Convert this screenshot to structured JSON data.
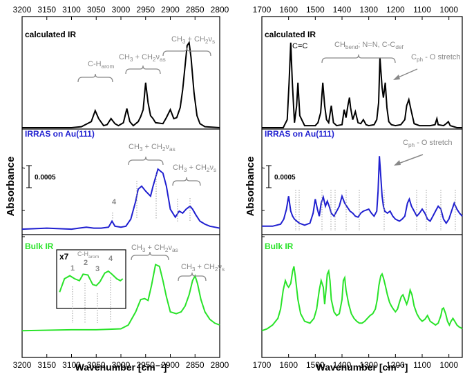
{
  "chart_data": [
    {
      "type": "line",
      "panel": "left",
      "xlabel": "Wavenumber [cm⁻¹]",
      "ylabel": "Absorbance",
      "xlim": [
        3200,
        2800
      ],
      "xticks": [
        "3200",
        "3150",
        "3100",
        "3050",
        "3000",
        "2950",
        "2900",
        "2850",
        "2800"
      ],
      "xtick_values": [
        3200,
        3150,
        3100,
        3050,
        3000,
        2950,
        2900,
        2850,
        2800
      ],
      "ylim": [
        0,
        1
      ],
      "grid": false,
      "series": [
        {
          "name": "calculated IR",
          "color": "#000000",
          "band": [
            0.0,
            0.333
          ],
          "x": [
            3200,
            3100,
            3080,
            3060,
            3052,
            3045,
            3035,
            3028,
            3020,
            3012,
            3005,
            2995,
            2988,
            2982,
            2975,
            2965,
            2960,
            2955,
            2950,
            2945,
            2940,
            2935,
            2930,
            2915,
            2908,
            2900,
            2893,
            2887,
            2880,
            2875,
            2870,
            2866,
            2862,
            2858,
            2852,
            2846,
            2840,
            2830,
            2800
          ],
          "y": [
            0.0,
            0.0,
            0.01,
            0.06,
            0.17,
            0.09,
            0.02,
            0.03,
            0.09,
            0.04,
            0.02,
            0.05,
            0.19,
            0.06,
            0.02,
            0.06,
            0.11,
            0.18,
            0.45,
            0.25,
            0.12,
            0.09,
            0.05,
            0.04,
            0.1,
            0.18,
            0.09,
            0.1,
            0.2,
            0.38,
            0.62,
            0.82,
            0.85,
            0.7,
            0.35,
            0.12,
            0.04,
            0.01,
            0.0
          ]
        },
        {
          "name": "IRRAS on Au(111)",
          "color": "#1f1fd0",
          "band": [
            0.333,
            0.667
          ],
          "x": [
            3200,
            3150,
            3100,
            3085,
            3070,
            3055,
            3040,
            3025,
            3018,
            3012,
            3000,
            2990,
            2980,
            2970,
            2965,
            2958,
            2950,
            2940,
            2935,
            2925,
            2915,
            2908,
            2900,
            2890,
            2882,
            2875,
            2868,
            2860,
            2855,
            2848,
            2840,
            2830,
            2820,
            2810,
            2800
          ],
          "y": [
            0.02,
            0.03,
            0.02,
            0.03,
            0.04,
            0.03,
            0.03,
            0.04,
            0.1,
            0.05,
            0.04,
            0.05,
            0.12,
            0.3,
            0.42,
            0.45,
            0.4,
            0.35,
            0.45,
            0.62,
            0.58,
            0.45,
            0.22,
            0.14,
            0.2,
            0.18,
            0.22,
            0.25,
            0.22,
            0.16,
            0.1,
            0.07,
            0.05,
            0.04,
            0.03
          ]
        },
        {
          "name": "Bulk IR",
          "color": "#29e329",
          "band": [
            0.667,
            1.0
          ],
          "x": [
            3200,
            3100,
            3050,
            3000,
            2985,
            2970,
            2960,
            2952,
            2945,
            2938,
            2930,
            2922,
            2915,
            2908,
            2900,
            2888,
            2878,
            2870,
            2862,
            2855,
            2850,
            2845,
            2838,
            2830,
            2820,
            2810,
            2800
          ],
          "y": [
            0.02,
            0.03,
            0.03,
            0.04,
            0.08,
            0.22,
            0.35,
            0.36,
            0.34,
            0.5,
            0.72,
            0.7,
            0.55,
            0.38,
            0.22,
            0.2,
            0.22,
            0.28,
            0.4,
            0.55,
            0.6,
            0.52,
            0.35,
            0.22,
            0.14,
            0.1,
            0.08
          ]
        },
        {
          "name": "Bulk IR inset x7",
          "color": "#29e329",
          "inset": true,
          "x": [
            3105,
            3097,
            3088,
            3080,
            3072,
            3066,
            3058,
            3050,
            3044,
            3038,
            3030,
            3024,
            3018,
            3010,
            3004,
            3000
          ],
          "y": [
            0.25,
            0.6,
            0.68,
            0.6,
            0.55,
            0.72,
            0.7,
            0.45,
            0.42,
            0.52,
            0.75,
            0.8,
            0.72,
            0.6,
            0.55,
            0.6
          ]
        }
      ],
      "annotations": {
        "calc_CH_arom": "C-H",
        "calc_CH_arom_sub": "arom",
        "calc_CH3_as": "CH",
        "calc_CH2_as_tail": " + CH",
        "calc_as_sub": "as",
        "calc_s_sub": "s",
        "nu": "ν",
        "three": "3",
        "two": "2",
        "irras_peak4": "4",
        "scale_bar": "0.0005",
        "inset_x7": "x7",
        "inset_1": "1",
        "inset_2": "2",
        "inset_3": "3",
        "inset_4": "4",
        "inset_CH": "C-H",
        "inset_CH_sub": "arom"
      }
    },
    {
      "type": "line",
      "panel": "right",
      "xlabel": "Wavenumber [cm⁻¹]",
      "ylabel": "Absorbance",
      "xlim": [
        1700,
        950
      ],
      "xticks": [
        "1700",
        "1600",
        "1500",
        "1400",
        "1300",
        "1200",
        "1100",
        "1000"
      ],
      "xtick_values": [
        1700,
        1600,
        1500,
        1400,
        1300,
        1200,
        1100,
        1000
      ],
      "ylim": [
        0,
        1
      ],
      "grid": false,
      "series": [
        {
          "name": "calculated IR",
          "color": "#000000",
          "x": [
            1700,
            1620,
            1605,
            1598,
            1592,
            1586,
            1578,
            1570,
            1565,
            1558,
            1540,
            1500,
            1490,
            1480,
            1472,
            1465,
            1458,
            1450,
            1440,
            1432,
            1420,
            1400,
            1392,
            1385,
            1378,
            1372,
            1368,
            1360,
            1350,
            1340,
            1330,
            1320,
            1310,
            1300,
            1280,
            1270,
            1263,
            1258,
            1250,
            1245,
            1238,
            1232,
            1225,
            1215,
            1200,
            1180,
            1165,
            1158,
            1150,
            1142,
            1130,
            1110,
            1070,
            1052,
            1045,
            1040,
            1020,
            1010,
            1002,
            995,
            970,
            950
          ],
          "y": [
            0.0,
            0.0,
            0.08,
            0.45,
            0.85,
            0.45,
            0.05,
            0.22,
            0.45,
            0.12,
            0.02,
            0.02,
            0.05,
            0.15,
            0.45,
            0.22,
            0.08,
            0.05,
            0.22,
            0.05,
            0.02,
            0.03,
            0.18,
            0.1,
            0.22,
            0.3,
            0.2,
            0.08,
            0.16,
            0.05,
            0.04,
            0.08,
            0.03,
            0.02,
            0.03,
            0.08,
            0.25,
            0.7,
            0.4,
            0.3,
            0.45,
            0.2,
            0.06,
            0.03,
            0.02,
            0.03,
            0.08,
            0.22,
            0.28,
            0.18,
            0.04,
            0.02,
            0.02,
            0.03,
            0.09,
            0.03,
            0.02,
            0.04,
            0.06,
            0.02,
            0.0,
            0.0
          ]
        },
        {
          "name": "IRRAS on Au(111)",
          "color": "#1f1fd0",
          "x": [
            1700,
            1660,
            1630,
            1618,
            1608,
            1600,
            1592,
            1585,
            1578,
            1560,
            1540,
            1520,
            1508,
            1500,
            1492,
            1485,
            1478,
            1470,
            1462,
            1455,
            1448,
            1440,
            1430,
            1420,
            1410,
            1400,
            1390,
            1380,
            1370,
            1360,
            1350,
            1340,
            1330,
            1320,
            1300,
            1290,
            1280,
            1270,
            1265,
            1260,
            1255,
            1250,
            1245,
            1240,
            1230,
            1220,
            1210,
            1200,
            1185,
            1175,
            1165,
            1155,
            1148,
            1140,
            1130,
            1120,
            1110,
            1100,
            1090,
            1080,
            1070,
            1060,
            1050,
            1040,
            1030,
            1020,
            1010,
            1000,
            990,
            980,
            970,
            960,
            950
          ],
          "y": [
            0.05,
            0.05,
            0.07,
            0.12,
            0.22,
            0.35,
            0.2,
            0.15,
            0.12,
            0.08,
            0.06,
            0.08,
            0.18,
            0.32,
            0.22,
            0.15,
            0.28,
            0.34,
            0.25,
            0.3,
            0.25,
            0.18,
            0.15,
            0.2,
            0.25,
            0.35,
            0.28,
            0.24,
            0.2,
            0.18,
            0.15,
            0.14,
            0.18,
            0.2,
            0.22,
            0.18,
            0.15,
            0.2,
            0.4,
            0.75,
            0.55,
            0.35,
            0.25,
            0.2,
            0.18,
            0.2,
            0.15,
            0.12,
            0.1,
            0.12,
            0.15,
            0.28,
            0.32,
            0.25,
            0.2,
            0.15,
            0.18,
            0.22,
            0.18,
            0.12,
            0.1,
            0.15,
            0.2,
            0.25,
            0.22,
            0.12,
            0.08,
            0.12,
            0.2,
            0.28,
            0.22,
            0.18,
            0.15
          ]
        },
        {
          "name": "Bulk IR",
          "color": "#29e329",
          "x": [
            1700,
            1680,
            1660,
            1640,
            1630,
            1620,
            1612,
            1605,
            1600,
            1592,
            1585,
            1580,
            1575,
            1565,
            1555,
            1540,
            1520,
            1505,
            1495,
            1485,
            1478,
            1470,
            1465,
            1460,
            1455,
            1450,
            1445,
            1440,
            1430,
            1420,
            1410,
            1400,
            1395,
            1390,
            1385,
            1375,
            1365,
            1355,
            1345,
            1335,
            1325,
            1315,
            1305,
            1295,
            1285,
            1275,
            1268,
            1262,
            1255,
            1250,
            1245,
            1238,
            1230,
            1222,
            1215,
            1208,
            1200,
            1192,
            1185,
            1178,
            1172,
            1165,
            1158,
            1152,
            1145,
            1138,
            1130,
            1120,
            1110,
            1100,
            1090,
            1080,
            1070,
            1060,
            1050,
            1040,
            1030,
            1025,
            1020,
            1012,
            1005,
            998,
            992,
            985,
            978,
            970,
            962,
            955,
            950
          ],
          "y": [
            0.02,
            0.04,
            0.08,
            0.15,
            0.25,
            0.45,
            0.55,
            0.5,
            0.48,
            0.52,
            0.65,
            0.7,
            0.6,
            0.35,
            0.2,
            0.12,
            0.1,
            0.15,
            0.25,
            0.45,
            0.55,
            0.48,
            0.3,
            0.45,
            0.62,
            0.65,
            0.55,
            0.35,
            0.22,
            0.18,
            0.2,
            0.35,
            0.55,
            0.58,
            0.45,
            0.3,
            0.2,
            0.15,
            0.12,
            0.1,
            0.1,
            0.12,
            0.15,
            0.18,
            0.2,
            0.25,
            0.35,
            0.5,
            0.6,
            0.62,
            0.58,
            0.5,
            0.4,
            0.32,
            0.28,
            0.25,
            0.22,
            0.25,
            0.32,
            0.38,
            0.4,
            0.35,
            0.3,
            0.35,
            0.45,
            0.4,
            0.28,
            0.2,
            0.15,
            0.12,
            0.14,
            0.18,
            0.12,
            0.1,
            0.08,
            0.1,
            0.18,
            0.25,
            0.26,
            0.2,
            0.12,
            0.08,
            0.12,
            0.15,
            0.12,
            0.08,
            0.06,
            0.05,
            0.04
          ]
        }
      ],
      "annotations": {
        "calc_CC": "C=C",
        "calc_CH_bend": "CH",
        "calc_CH_bend_sub": "bend",
        "calc_NN": "; N=N, C-C",
        "calc_def_sub": "def",
        "calc_Cph": "C",
        "calc_ph_sub": "ph",
        "calc_O_stretch": " - O stretch",
        "scale_bar": "0.0005"
      }
    }
  ]
}
